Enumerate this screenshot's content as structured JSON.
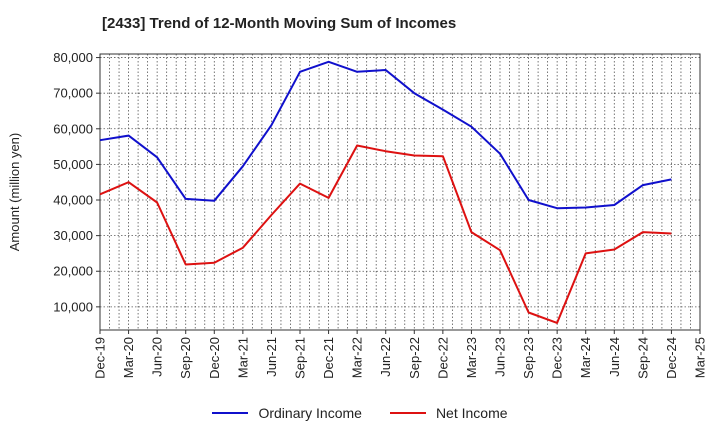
{
  "colors": {
    "ordinary": "#1010cc",
    "net": "#dd1111"
  },
  "chart_data": {
    "type": "line",
    "title": "[2433]  Trend of 12-Month Moving Sum of Incomes",
    "xlabel": "",
    "ylabel": "Amount (million yen)",
    "ylim": [
      3500,
      81000
    ],
    "yticks": [
      10000,
      20000,
      30000,
      40000,
      50000,
      60000,
      70000,
      80000
    ],
    "ytick_labels": [
      "10,000",
      "20,000",
      "30,000",
      "40,000",
      "50,000",
      "60,000",
      "70,000",
      "80,000"
    ],
    "categories": [
      "Dec-19",
      "Mar-20",
      "Jun-20",
      "Sep-20",
      "Dec-20",
      "Mar-21",
      "Jun-21",
      "Sep-21",
      "Dec-21",
      "Mar-22",
      "Jun-22",
      "Sep-22",
      "Dec-22",
      "Mar-23",
      "Jun-23",
      "Sep-23",
      "Dec-23",
      "Mar-24",
      "Jun-24",
      "Sep-24",
      "Dec-24",
      "Mar-25"
    ],
    "grid": true,
    "legend_position": "bottom",
    "series": [
      {
        "name": "Ordinary Income",
        "values": [
          56800,
          58100,
          52000,
          40300,
          39800,
          49500,
          61000,
          76000,
          78800,
          76000,
          76500,
          70000,
          65400,
          60600,
          53000,
          40000,
          37700,
          37900,
          38600,
          44200,
          45800,
          null
        ]
      },
      {
        "name": "Net Income",
        "values": [
          41600,
          45000,
          39300,
          21900,
          22400,
          26600,
          35800,
          44600,
          40600,
          55300,
          53700,
          52500,
          52300,
          31000,
          25900,
          8400,
          5500,
          25000,
          26100,
          31000,
          30600,
          null
        ]
      }
    ]
  }
}
